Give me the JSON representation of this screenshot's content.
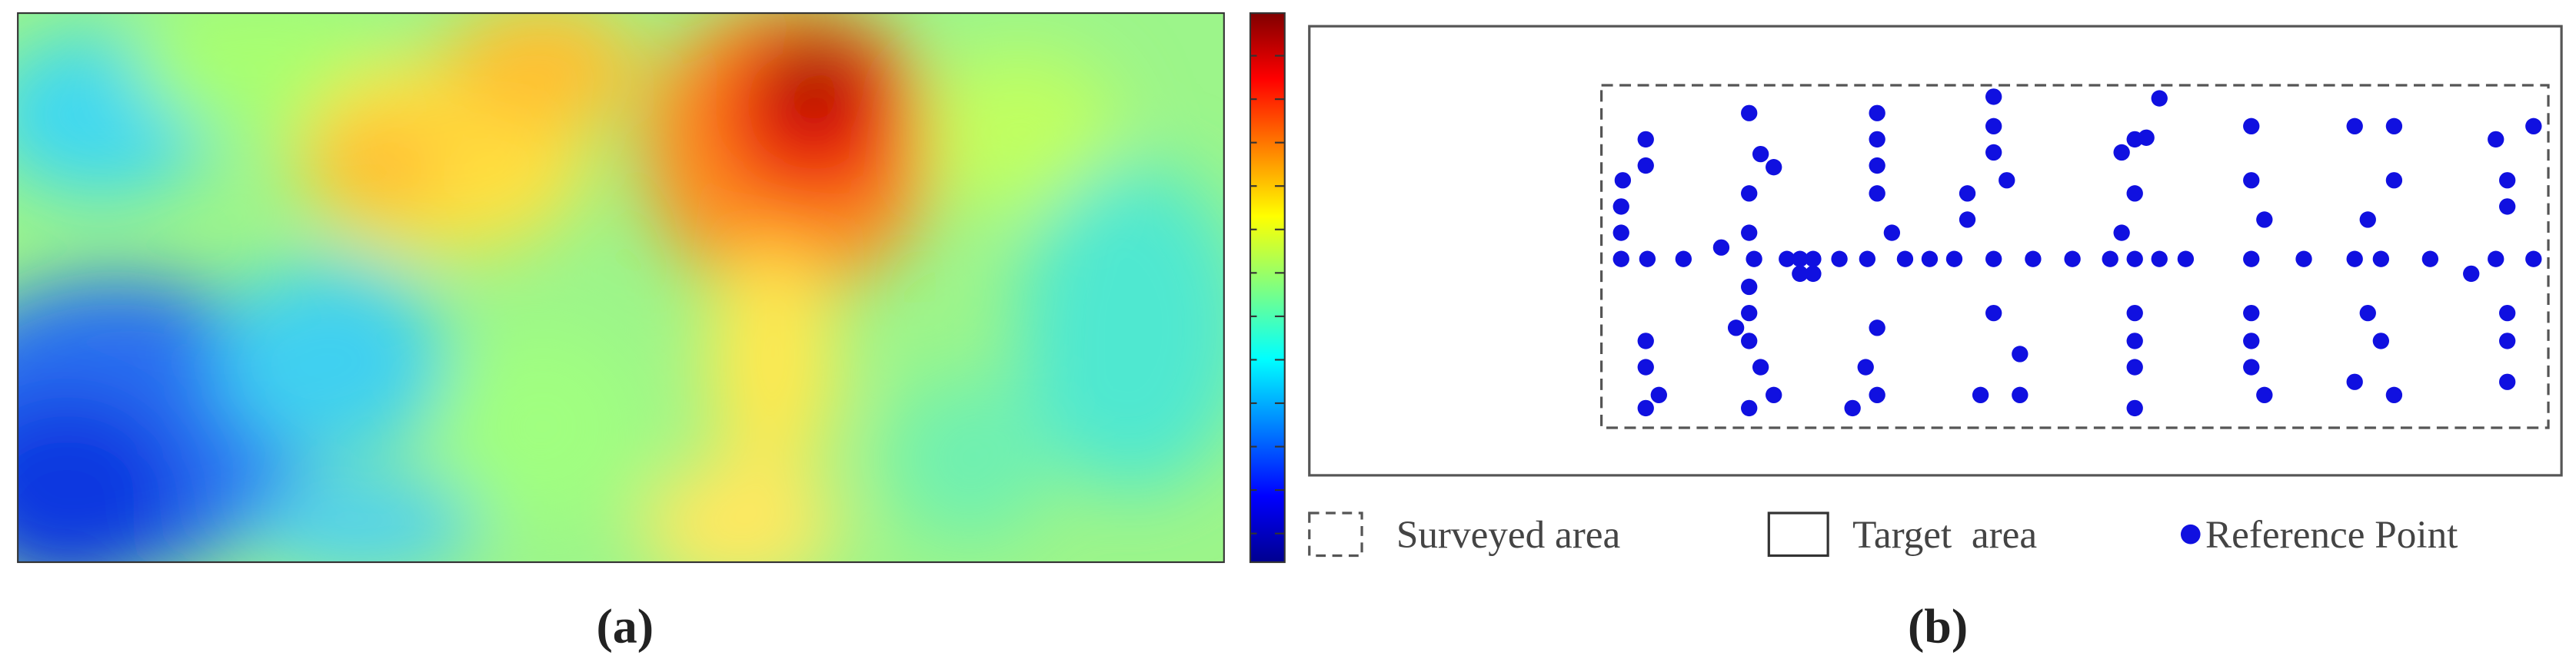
{
  "figure": {
    "panels": [
      {
        "label": "(a)"
      },
      {
        "label": "(b)",
        "legend": [
          "Surveyed area",
          "Target  area",
          "Reference Point"
        ]
      }
    ]
  }
}
